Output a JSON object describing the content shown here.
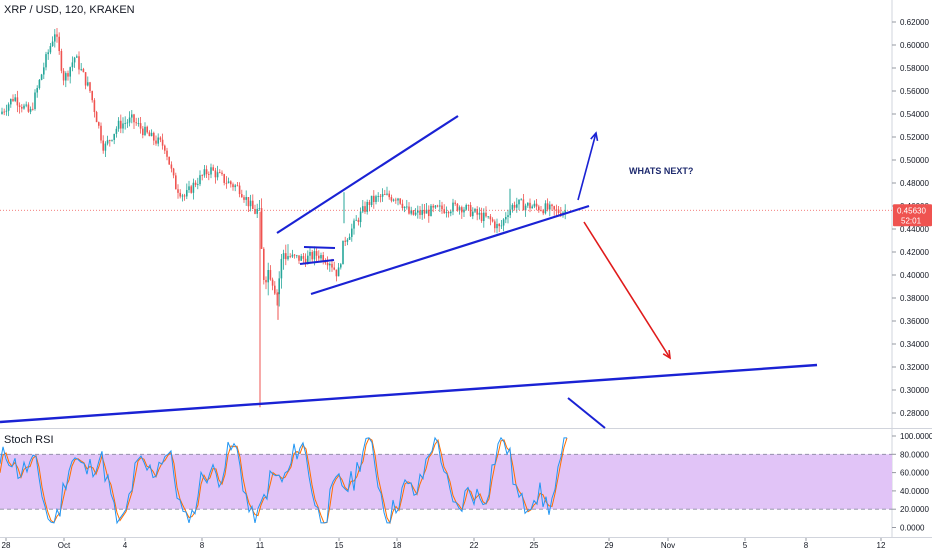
{
  "header": {
    "symbol_title": "XRP / USD, 120, KRAKEN"
  },
  "indicator": {
    "name": "Stoch RSI",
    "ticks": [
      "100.0000",
      "80.0000",
      "60.0000",
      "40.0000",
      "20.0000",
      "0.0000"
    ]
  },
  "annotation": {
    "text": "WHATS NEXT?"
  },
  "price_badge": {
    "price": "0.45630",
    "countdown": "52:01",
    "color": "#ef5350"
  },
  "colors": {
    "up": "#26a69a",
    "down": "#ef5350",
    "drawing_blue": "#1a22d4",
    "drawing_red": "#e01b1b",
    "stoch_band": "#e1c4f7",
    "stoch_k": "#2196f3",
    "stoch_d": "#ff6d00"
  },
  "chart_data": {
    "type": "candlestick",
    "title": "XRP / USD, 120, KRAKEN",
    "y_axis": {
      "ticks": [
        "0.62000",
        "0.60000",
        "0.58000",
        "0.56000",
        "0.54000",
        "0.52000",
        "0.50000",
        "0.48000",
        "0.46000",
        "0.44000",
        "0.42000",
        "0.40000",
        "0.38000",
        "0.36000",
        "0.34000",
        "0.32000",
        "0.30000",
        "0.28000"
      ],
      "ylim": [
        0.26,
        0.63
      ]
    },
    "x_axis": {
      "ticks": [
        "28",
        "Oct",
        "4",
        "8",
        "11",
        "15",
        "18",
        "22",
        "25",
        "29",
        "Nov",
        "5",
        "8",
        "12"
      ]
    },
    "price_path": [
      [
        "28",
        0.54
      ],
      [
        "1",
        0.605
      ],
      [
        "3",
        0.53
      ],
      [
        "5",
        0.51
      ],
      [
        "8",
        0.49
      ],
      [
        "10",
        0.46
      ],
      [
        "11",
        0.39
      ],
      [
        "12",
        0.41
      ],
      [
        "14",
        0.415
      ],
      [
        "15",
        0.44
      ],
      [
        "16",
        0.47
      ],
      [
        "18",
        0.455
      ],
      [
        "20",
        0.458
      ],
      [
        "22",
        0.445
      ],
      [
        "24",
        0.462
      ],
      [
        "26",
        0.456
      ]
    ],
    "current_price": 0.4563,
    "spike_low": 0.285,
    "stoch_rsi": {
      "ylim": [
        0,
        100
      ],
      "upper_band": 80,
      "lower_band": 20
    }
  }
}
